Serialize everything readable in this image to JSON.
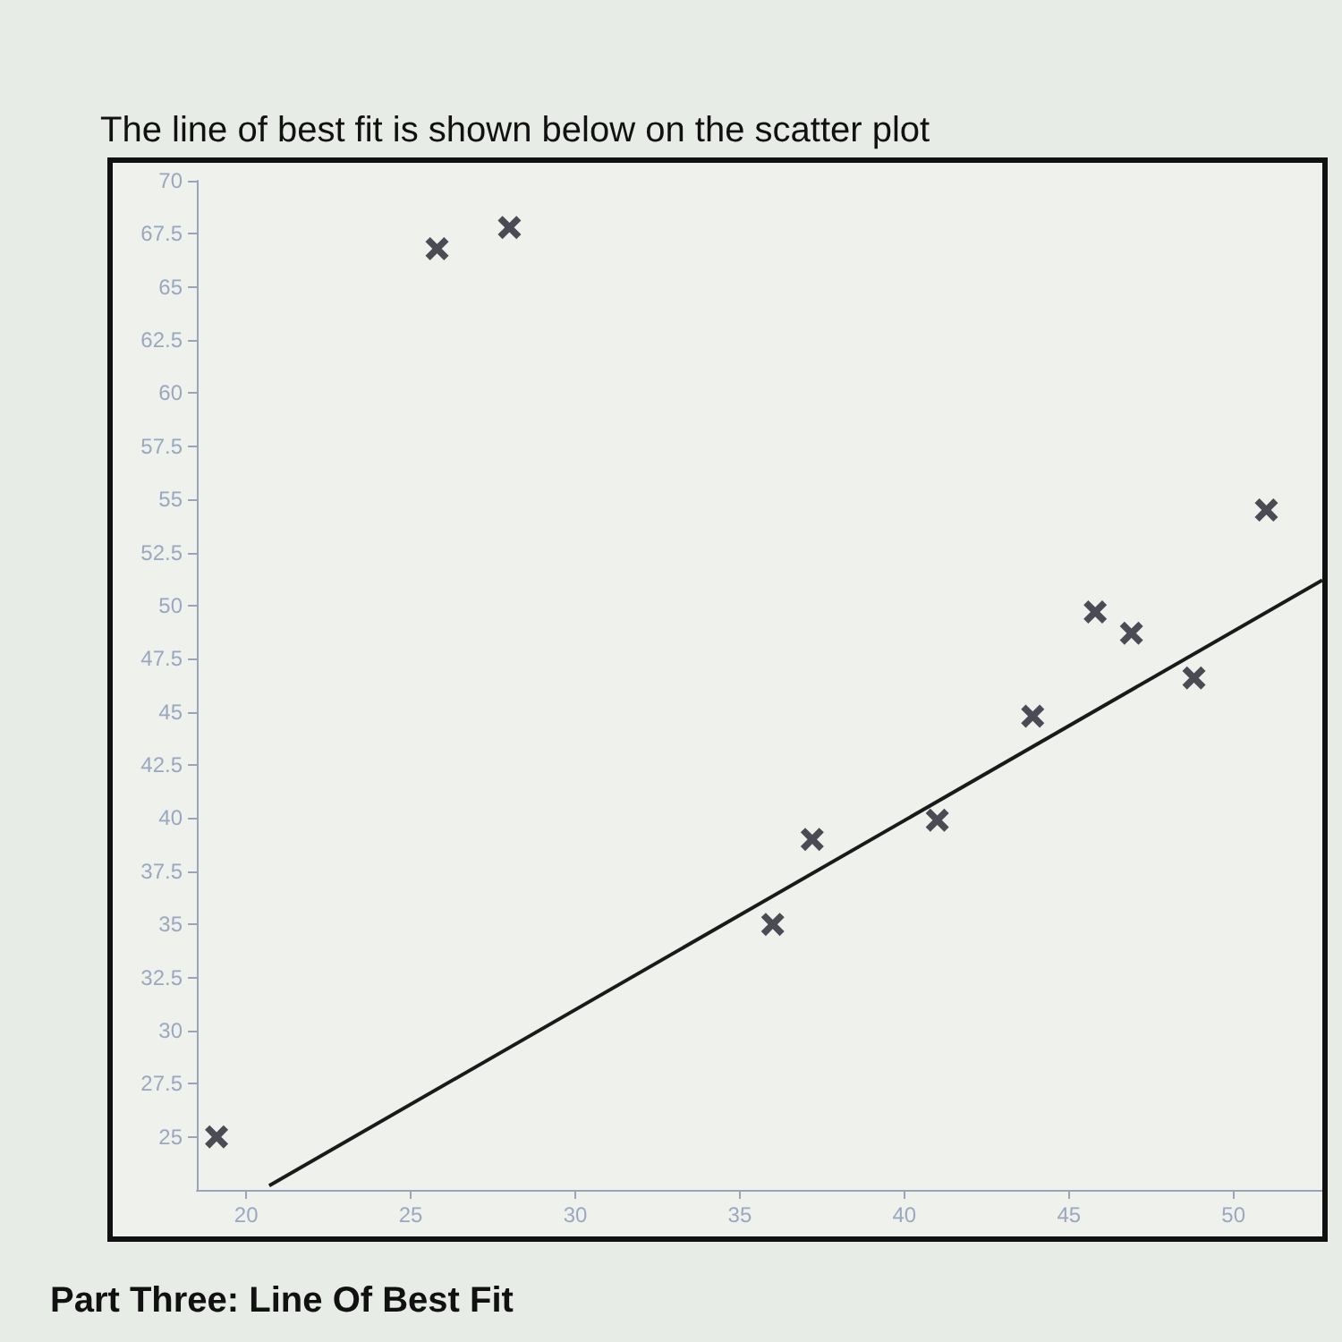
{
  "chart_data": {
    "type": "scatter",
    "title": "The line of best fit is shown below on the scatter plot",
    "annotations": [
      "Part Three: Line Of Best Fit"
    ],
    "xlim": [
      18.5,
      52.7
    ],
    "xticks": [
      20,
      25,
      30,
      35,
      40,
      45,
      50
    ],
    "ylim": [
      22.5,
      70
    ],
    "yticks": [
      25,
      27.5,
      30,
      32.5,
      35,
      37.5,
      40,
      42.5,
      45,
      47.5,
      50,
      52.5,
      55,
      57.5,
      60,
      62.5,
      65,
      67.5,
      70
    ],
    "grid": false,
    "series": [
      {
        "color": "#22222e",
        "marker": "cross",
        "x": [
          19.1,
          25.8,
          28.0,
          36.0,
          37.2,
          41.0,
          43.9,
          45.8,
          46.9,
          48.8,
          51.0
        ],
        "values": [
          25,
          66.8,
          67.8,
          35,
          39.0,
          39.9,
          44.8,
          49.7,
          48.7,
          46.6,
          54.5
        ]
      },
      {
        "type": "line",
        "color": "#1a1a1a",
        "marker": "none",
        "line_style": "solid",
        "x": [
          20.7,
          52.7
        ],
        "values": [
          22.7,
          51.2
        ]
      }
    ]
  }
}
